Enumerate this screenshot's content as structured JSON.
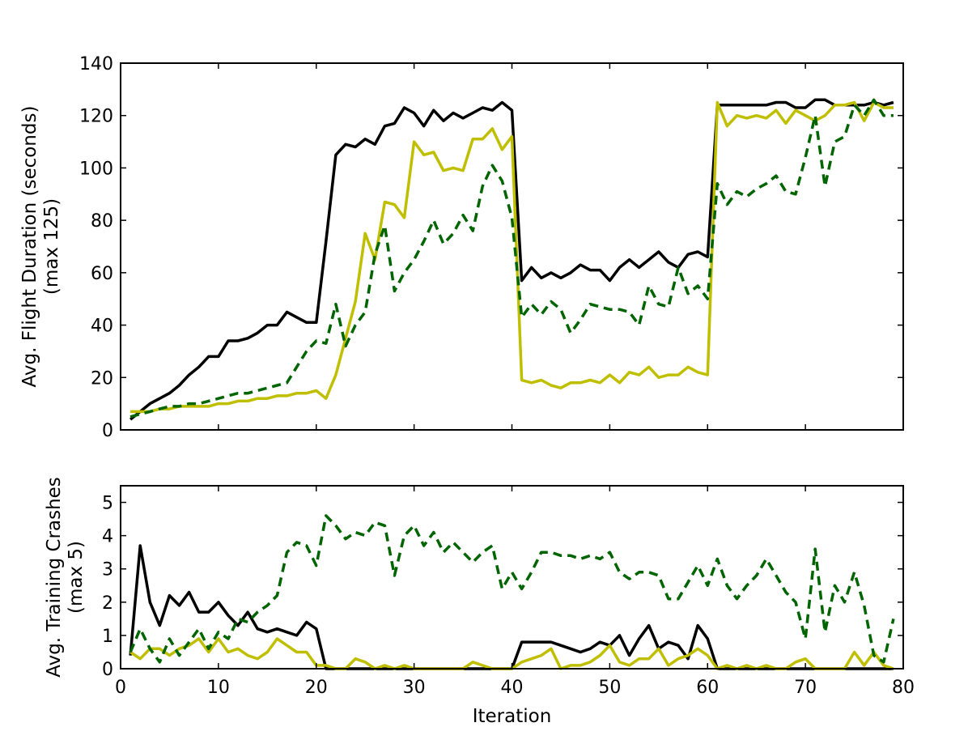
{
  "chart_data": [
    {
      "type": "line",
      "xlabel": "",
      "ylabel": [
        "Avg. Flight Duration (seconds)",
        "(max 125)"
      ],
      "xlim": [
        0,
        80
      ],
      "ylim": [
        0,
        140
      ],
      "xticks": [],
      "yticks": [
        0,
        20,
        40,
        60,
        80,
        100,
        120,
        140
      ],
      "grid": false,
      "x": [
        1,
        2,
        3,
        4,
        5,
        6,
        7,
        8,
        9,
        10,
        11,
        12,
        13,
        14,
        15,
        16,
        17,
        18,
        19,
        20,
        21,
        22,
        23,
        24,
        25,
        26,
        27,
        28,
        29,
        30,
        31,
        32,
        33,
        34,
        35,
        36,
        37,
        38,
        39,
        40,
        41,
        42,
        43,
        44,
        45,
        46,
        47,
        48,
        49,
        50,
        51,
        52,
        53,
        54,
        55,
        56,
        57,
        58,
        59,
        60,
        61,
        62,
        63,
        64,
        65,
        66,
        67,
        68,
        69,
        70,
        71,
        72,
        73,
        74,
        75,
        76,
        77,
        78,
        79
      ],
      "series": [
        {
          "color": "#000000",
          "style": "solid",
          "values": [
            4,
            7,
            10,
            12,
            14,
            17,
            21,
            24,
            28,
            28,
            34,
            34,
            35,
            37,
            40,
            40,
            45,
            43,
            41,
            41,
            72,
            105,
            109,
            108,
            111,
            109,
            116,
            117,
            123,
            121,
            116,
            122,
            118,
            121,
            119,
            121,
            123,
            122,
            125,
            122,
            57,
            62,
            58,
            60,
            58,
            60,
            63,
            61,
            61,
            57,
            62,
            65,
            62,
            65,
            68,
            64,
            62,
            67,
            68,
            66,
            124,
            124,
            124,
            124,
            124,
            124,
            125,
            125,
            123,
            123,
            126,
            126,
            124,
            124,
            124,
            124,
            125,
            124,
            125
          ]
        },
        {
          "color": "#bfbf00",
          "style": "solid",
          "values": [
            7,
            7,
            7,
            8,
            8,
            9,
            9,
            9,
            9,
            10,
            10,
            11,
            11,
            12,
            12,
            13,
            13,
            14,
            14,
            15,
            12,
            21,
            35,
            49,
            75,
            65,
            87,
            86,
            81,
            110,
            105,
            106,
            99,
            100,
            99,
            111,
            111,
            115,
            107,
            112,
            19,
            18,
            19,
            17,
            16,
            18,
            18,
            19,
            18,
            21,
            18,
            22,
            21,
            24,
            20,
            21,
            21,
            24,
            22,
            21,
            125,
            116,
            120,
            119,
            120,
            119,
            122,
            117,
            122,
            120,
            118,
            120,
            124,
            124,
            125,
            118,
            125,
            123,
            123
          ]
        },
        {
          "color": "#006400",
          "style": "dashed",
          "values": [
            5,
            6,
            7,
            8,
            9,
            9,
            10,
            10,
            11,
            12,
            13,
            14,
            14,
            15,
            16,
            17,
            18,
            24,
            30,
            34,
            33,
            48,
            32,
            40,
            45,
            67,
            78,
            53,
            60,
            65,
            72,
            80,
            71,
            75,
            82,
            76,
            93,
            101,
            95,
            81,
            43,
            48,
            44,
            49,
            46,
            37,
            42,
            48,
            47,
            46,
            46,
            45,
            40,
            55,
            48,
            47,
            62,
            52,
            55,
            50,
            94,
            86,
            91,
            89,
            92,
            94,
            97,
            91,
            90,
            104,
            120,
            93,
            110,
            112,
            124,
            120,
            126,
            120,
            120
          ]
        }
      ]
    },
    {
      "type": "line",
      "xlabel": "Iteration",
      "ylabel": [
        "Avg. Training Crashes",
        "(max 5)"
      ],
      "xlim": [
        0,
        80
      ],
      "ylim": [
        0,
        5.5
      ],
      "xticks": [
        0,
        10,
        20,
        30,
        40,
        50,
        60,
        70,
        80
      ],
      "yticks": [
        0,
        1,
        2,
        3,
        4,
        5
      ],
      "grid": false,
      "x": [
        1,
        2,
        3,
        4,
        5,
        6,
        7,
        8,
        9,
        10,
        11,
        12,
        13,
        14,
        15,
        16,
        17,
        18,
        19,
        20,
        21,
        22,
        23,
        24,
        25,
        26,
        27,
        28,
        29,
        30,
        31,
        32,
        33,
        34,
        35,
        36,
        37,
        38,
        39,
        40,
        41,
        42,
        43,
        44,
        45,
        46,
        47,
        48,
        49,
        50,
        51,
        52,
        53,
        54,
        55,
        56,
        57,
        58,
        59,
        60,
        61,
        62,
        63,
        64,
        65,
        66,
        67,
        68,
        69,
        70,
        71,
        72,
        73,
        74,
        75,
        76,
        77,
        78,
        79
      ],
      "series": [
        {
          "color": "#000000",
          "style": "solid",
          "values": [
            0.4,
            3.7,
            2.0,
            1.3,
            2.2,
            1.9,
            2.3,
            1.7,
            1.7,
            2.0,
            1.6,
            1.3,
            1.7,
            1.2,
            1.1,
            1.2,
            1.1,
            1.0,
            1.4,
            1.2,
            0,
            0,
            0,
            0,
            0,
            0,
            0,
            0,
            0,
            0,
            0,
            0,
            0,
            0,
            0,
            0,
            0,
            0,
            0,
            0,
            0.8,
            0.8,
            0.8,
            0.8,
            0.7,
            0.6,
            0.5,
            0.6,
            0.8,
            0.7,
            1.0,
            0.4,
            0.9,
            1.3,
            0.6,
            0.8,
            0.7,
            0.3,
            1.3,
            0.9,
            0,
            0,
            0,
            0,
            0,
            0,
            0,
            0,
            0,
            0,
            0,
            0,
            0,
            0,
            0,
            0,
            0,
            0,
            0
          ]
        },
        {
          "color": "#bfbf00",
          "style": "solid",
          "values": [
            0.5,
            0.3,
            0.6,
            0.6,
            0.4,
            0.6,
            0.7,
            0.9,
            0.5,
            0.9,
            0.5,
            0.6,
            0.4,
            0.3,
            0.5,
            0.9,
            0.7,
            0.5,
            0.5,
            0.1,
            0.1,
            0,
            0,
            0.3,
            0.2,
            0,
            0.1,
            0,
            0.1,
            0,
            0,
            0,
            0,
            0,
            0,
            0.2,
            0.1,
            0,
            0,
            0,
            0.2,
            0.3,
            0.4,
            0.6,
            0,
            0.1,
            0.1,
            0.2,
            0.4,
            0.7,
            0.2,
            0.1,
            0.3,
            0.3,
            0.6,
            0.1,
            0.3,
            0.4,
            0.6,
            0.4,
            0,
            0.1,
            0,
            0.1,
            0,
            0.1,
            0,
            0,
            0.2,
            0.3,
            0,
            0,
            0,
            0,
            0.5,
            0.1,
            0.5,
            0.1,
            0
          ]
        },
        {
          "color": "#006400",
          "style": "dashed",
          "values": [
            0.5,
            1.2,
            0.6,
            0.2,
            0.9,
            0.4,
            0.8,
            1.2,
            0.6,
            1.1,
            0.9,
            1.5,
            1.4,
            1.7,
            1.9,
            2.2,
            3.5,
            3.8,
            3.7,
            3.1,
            4.6,
            4.3,
            3.9,
            4.1,
            4.0,
            4.4,
            4.3,
            2.8,
            4.0,
            4.3,
            3.7,
            4.1,
            3.5,
            3.8,
            3.5,
            3.2,
            3.5,
            3.7,
            2.4,
            2.9,
            2.4,
            2.9,
            3.5,
            3.5,
            3.4,
            3.4,
            3.3,
            3.4,
            3.3,
            3.5,
            2.9,
            2.7,
            2.9,
            2.9,
            2.8,
            2.1,
            2.1,
            2.6,
            3.1,
            2.5,
            3.3,
            2.5,
            2.1,
            2.5,
            2.8,
            3.3,
            2.8,
            2.3,
            2.0,
            0.9,
            3.6,
            1.1,
            2.5,
            2.0,
            2.9,
            1.9,
            0.4,
            0.2,
            1.5
          ]
        }
      ]
    }
  ]
}
